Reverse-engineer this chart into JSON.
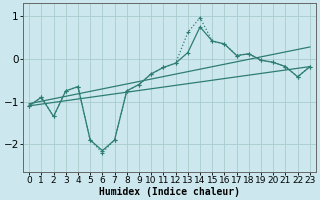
{
  "xlabel": "Humidex (Indice chaleur)",
  "bg_color": "#cce8ee",
  "grid_color": "#aacccc",
  "line_color": "#2e7d72",
  "xlim": [
    -0.5,
    23.5
  ],
  "ylim": [
    -2.65,
    1.3
  ],
  "yticks": [
    -2,
    -1,
    0,
    1
  ],
  "xticks": [
    0,
    1,
    2,
    3,
    4,
    5,
    6,
    7,
    8,
    9,
    10,
    11,
    12,
    13,
    14,
    15,
    16,
    17,
    18,
    19,
    20,
    21,
    22,
    23
  ],
  "line1_x": [
    0,
    1,
    2,
    3,
    4,
    5,
    6,
    7,
    8,
    9,
    10,
    11,
    12,
    13,
    14,
    15,
    16,
    17,
    18,
    19,
    20,
    21,
    22,
    23
  ],
  "line1_y": [
    -1.1,
    -0.9,
    -1.35,
    -0.75,
    -0.65,
    -1.9,
    -2.15,
    -1.9,
    -0.75,
    -0.6,
    -0.35,
    -0.2,
    -0.1,
    0.15,
    0.75,
    0.42,
    0.35,
    0.08,
    0.12,
    -0.03,
    -0.08,
    -0.18,
    -0.42,
    -0.18
  ],
  "line2_x": [
    0,
    1,
    2,
    3,
    4,
    5,
    6,
    7,
    8,
    9,
    10,
    11,
    12,
    13,
    14,
    15,
    16,
    17,
    18,
    19,
    20,
    21,
    22,
    23
  ],
  "line2_y": [
    -1.1,
    -0.9,
    -1.35,
    -0.75,
    -0.65,
    -1.9,
    -2.2,
    -1.9,
    -0.75,
    -0.6,
    -0.35,
    -0.2,
    -0.1,
    0.62,
    0.97,
    0.42,
    0.35,
    0.08,
    0.12,
    -0.03,
    -0.08,
    -0.18,
    -0.42,
    -0.18
  ],
  "line3_x": [
    0,
    23
  ],
  "line3_y": [
    -1.05,
    0.28
  ],
  "line4_x": [
    0,
    23
  ],
  "line4_y": [
    -1.1,
    -0.18
  ],
  "font_size_xlabel": 7,
  "font_size_ticks": 6.5
}
